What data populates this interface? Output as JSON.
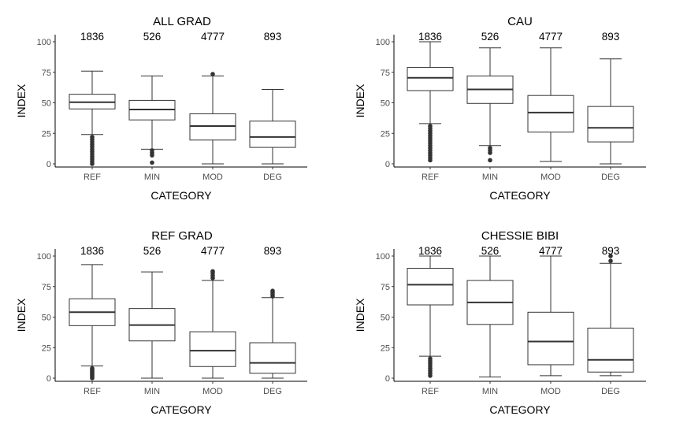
{
  "chart_data": [
    {
      "type": "box",
      "title": "ALL GRAD",
      "xlabel": "CATEGORY",
      "ylabel": "INDEX",
      "categories": [
        "REF",
        "MIN",
        "MOD",
        "DEG"
      ],
      "counts": [
        "1836",
        "526",
        "4777",
        "893"
      ],
      "ylim": [
        0,
        105
      ],
      "yticks": [
        "0",
        "25",
        "50",
        "75",
        "100"
      ],
      "grid": false,
      "boxes": [
        {
          "whisker_low": 24,
          "q1": 45,
          "median": 50.5,
          "q3": 57,
          "whisker_high": 76,
          "outliers": [
            0,
            2,
            4,
            6,
            8,
            10,
            12,
            14,
            16,
            18,
            20,
            22
          ]
        },
        {
          "whisker_low": 12,
          "q1": 36,
          "median": 44.5,
          "q3": 52,
          "whisker_high": 72,
          "outliers": [
            1,
            7,
            9,
            11
          ]
        },
        {
          "whisker_low": 0,
          "q1": 19.5,
          "median": 31,
          "q3": 41,
          "whisker_high": 72,
          "outliers": [
            73.5
          ]
        },
        {
          "whisker_low": 0,
          "q1": 13.5,
          "median": 22,
          "q3": 35,
          "whisker_high": 61,
          "outliers": []
        }
      ]
    },
    {
      "type": "box",
      "title": "CAU",
      "xlabel": "CATEGORY",
      "ylabel": "INDEX",
      "categories": [
        "REF",
        "MIN",
        "MOD",
        "DEG"
      ],
      "counts": [
        "1836",
        "526",
        "4777",
        "893"
      ],
      "ylim": [
        0,
        105
      ],
      "yticks": [
        "0",
        "25",
        "50",
        "75",
        "100"
      ],
      "grid": false,
      "boxes": [
        {
          "whisker_low": 33,
          "q1": 60,
          "median": 70.5,
          "q3": 79,
          "whisker_high": 100,
          "outliers": [
            3,
            5,
            7,
            9,
            11,
            13,
            15,
            17,
            19,
            21,
            23,
            25,
            27,
            29,
            31
          ]
        },
        {
          "whisker_low": 15,
          "q1": 49.5,
          "median": 61,
          "q3": 72,
          "whisker_high": 95,
          "outliers": [
            3,
            9,
            11,
            13
          ]
        },
        {
          "whisker_low": 2,
          "q1": 26,
          "median": 42,
          "q3": 56,
          "whisker_high": 95,
          "outliers": []
        },
        {
          "whisker_low": 0,
          "q1": 18,
          "median": 29.5,
          "q3": 47,
          "whisker_high": 86,
          "outliers": []
        }
      ]
    },
    {
      "type": "box",
      "title": "REF GRAD",
      "xlabel": "CATEGORY",
      "ylabel": "INDEX",
      "categories": [
        "REF",
        "MIN",
        "MOD",
        "DEG"
      ],
      "counts": [
        "1836",
        "526",
        "4777",
        "893"
      ],
      "ylim": [
        0,
        105
      ],
      "yticks": [
        "0",
        "25",
        "50",
        "75",
        "100"
      ],
      "grid": false,
      "boxes": [
        {
          "whisker_low": 10,
          "q1": 43,
          "median": 54,
          "q3": 65,
          "whisker_high": 93,
          "outliers": [
            0,
            1,
            2,
            3,
            4,
            5,
            6,
            7,
            8
          ]
        },
        {
          "whisker_low": 0,
          "q1": 30.5,
          "median": 43.5,
          "q3": 57,
          "whisker_high": 87,
          "outliers": []
        },
        {
          "whisker_low": 0,
          "q1": 9.5,
          "median": 22.5,
          "q3": 38,
          "whisker_high": 80,
          "outliers": [
            82,
            84,
            86,
            87.5
          ]
        },
        {
          "whisker_low": 0,
          "q1": 4,
          "median": 12.5,
          "q3": 29,
          "whisker_high": 66,
          "outliers": [
            67,
            68.5,
            70,
            71.5
          ]
        }
      ]
    },
    {
      "type": "box",
      "title": "CHESSIE BIBI",
      "xlabel": "CATEGORY",
      "ylabel": "INDEX",
      "categories": [
        "REF",
        "MIN",
        "MOD",
        "DEG"
      ],
      "counts": [
        "1836",
        "526",
        "4777",
        "893"
      ],
      "ylim": [
        0,
        105
      ],
      "yticks": [
        "0",
        "25",
        "50",
        "75",
        "100"
      ],
      "grid": false,
      "boxes": [
        {
          "whisker_low": 18,
          "q1": 60,
          "median": 76.5,
          "q3": 90,
          "whisker_high": 100,
          "outliers": [
            2,
            4,
            6,
            8,
            10,
            12,
            14,
            16
          ]
        },
        {
          "whisker_low": 1,
          "q1": 44,
          "median": 62,
          "q3": 80,
          "whisker_high": 100,
          "outliers": []
        },
        {
          "whisker_low": 2,
          "q1": 11,
          "median": 30,
          "q3": 54,
          "whisker_high": 100,
          "outliers": []
        },
        {
          "whisker_low": 2,
          "q1": 5,
          "median": 15,
          "q3": 41,
          "whisker_high": 94,
          "outliers": [
            96,
            100
          ]
        }
      ]
    }
  ]
}
